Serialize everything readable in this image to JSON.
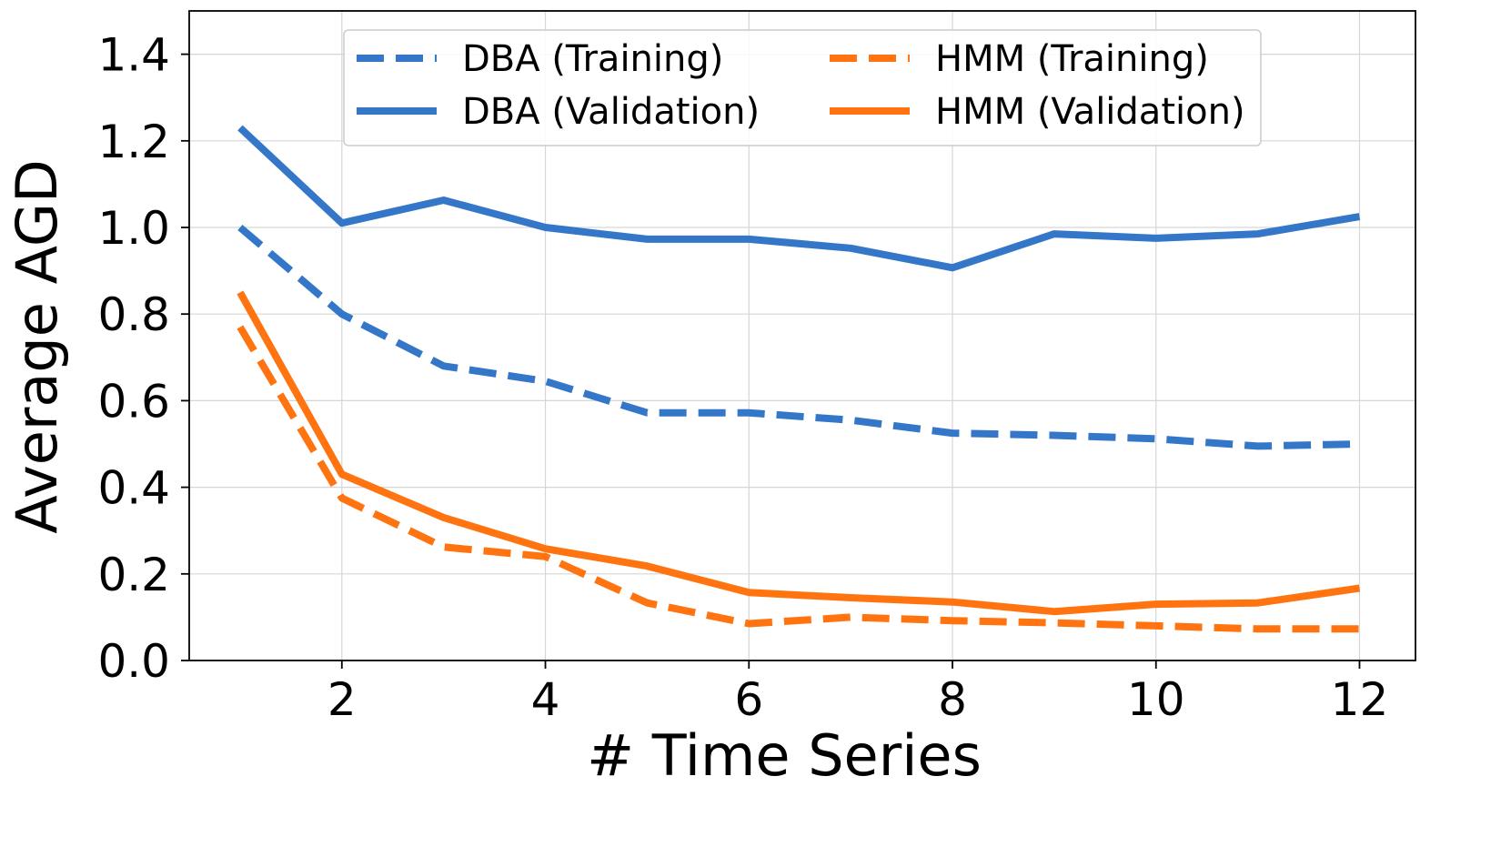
{
  "chart_data": {
    "type": "line",
    "title": "",
    "xlabel": "# Time Series",
    "ylabel": "Average AGD",
    "xlim": [
      0.5,
      12.55
    ],
    "ylim": [
      0.0,
      1.5
    ],
    "xticks": [
      2,
      4,
      6,
      8,
      10,
      12
    ],
    "yticks": [
      0.0,
      0.2,
      0.4,
      0.6,
      0.8,
      1.0,
      1.2,
      1.4
    ],
    "ytick_labels": [
      "0.0",
      "0.2",
      "0.4",
      "0.6",
      "0.8",
      "1.0",
      "1.2",
      "1.4"
    ],
    "grid": true,
    "legend_position": "top-center",
    "x": [
      1,
      2,
      3,
      4,
      5,
      6,
      7,
      8,
      9,
      10,
      11,
      12
    ],
    "series": [
      {
        "name": "DBA (Training)",
        "color": "#3477c9",
        "style": "dashed",
        "values": [
          1.0,
          0.8,
          0.68,
          0.645,
          0.572,
          0.572,
          0.555,
          0.525,
          0.52,
          0.512,
          0.495,
          0.5
        ]
      },
      {
        "name": "DBA (Validation)",
        "color": "#3477c9",
        "style": "solid",
        "values": [
          1.23,
          1.01,
          1.063,
          1.0,
          0.973,
          0.973,
          0.952,
          0.907,
          0.985,
          0.975,
          0.985,
          1.025
        ]
      },
      {
        "name": "HMM (Training)",
        "color": "#ff7410",
        "style": "dashed",
        "values": [
          0.77,
          0.375,
          0.262,
          0.24,
          0.133,
          0.085,
          0.1,
          0.092,
          0.087,
          0.08,
          0.073,
          0.073
        ]
      },
      {
        "name": "HMM (Validation)",
        "color": "#ff7410",
        "style": "solid",
        "values": [
          0.85,
          0.43,
          0.33,
          0.258,
          0.218,
          0.157,
          0.145,
          0.135,
          0.113,
          0.13,
          0.133,
          0.167
        ]
      }
    ]
  }
}
